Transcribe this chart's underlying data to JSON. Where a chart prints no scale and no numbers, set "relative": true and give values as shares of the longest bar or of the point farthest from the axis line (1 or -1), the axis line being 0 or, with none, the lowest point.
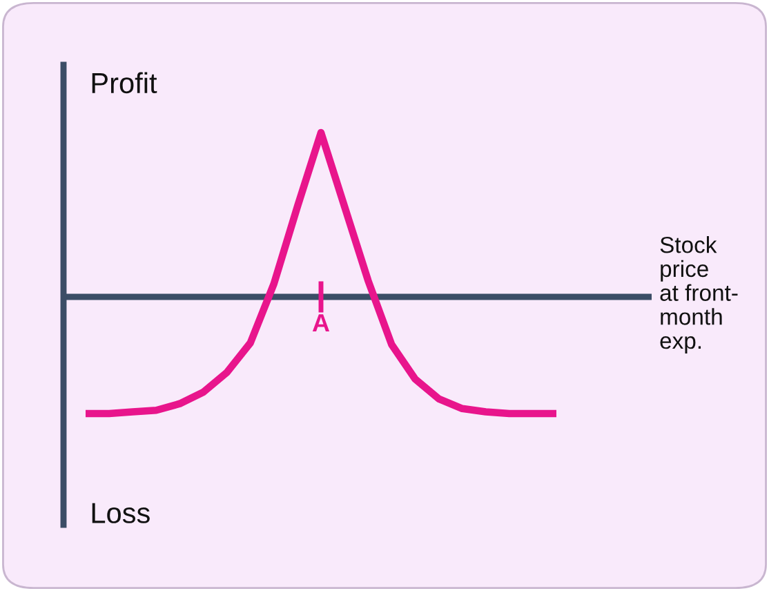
{
  "chart_data": {
    "type": "line",
    "relative": true,
    "categories": [
      null,
      null,
      null,
      null,
      null,
      null,
      null,
      null,
      null,
      null,
      null,
      null,
      null,
      null,
      null,
      null,
      null,
      null,
      null,
      null,
      null
    ],
    "series": [
      {
        "color": "#e8158c",
        "values": [
          -0.71,
          -0.71,
          -0.7,
          -0.69,
          -0.65,
          -0.58,
          -0.46,
          -0.28,
          0.08,
          0.55,
          1,
          0.55,
          0.1,
          -0.29,
          -0.5,
          -0.62,
          -0.68,
          -0.7,
          -0.71,
          -0.71,
          -0.71
        ]
      }
    ],
    "xlabel": "Stock\nprice\nat front-\nmonth\nexp.",
    "annotations": [
      "Profit",
      "Loss",
      "A"
    ],
    "ref_lines": [
      {
        "axis": "y",
        "value": 0,
        "color": "#3b4d66"
      }
    ],
    "legend": false,
    "marker": "none",
    "line_style": "solid"
  }
}
